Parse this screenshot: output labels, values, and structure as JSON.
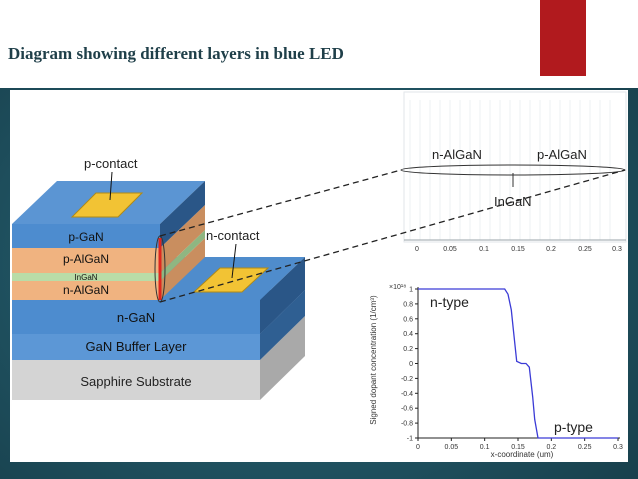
{
  "slide": {
    "title": "Diagram showing different layers in blue LED",
    "colors": {
      "accent": "#b11a1e",
      "background": "#215564"
    }
  },
  "diagram": {
    "p_contact": "p-contact",
    "n_contact": "n-contact",
    "layers": {
      "p_gan": "p-GaN",
      "p_algan": "p-AlGaN",
      "ingan": "InGaN",
      "n_algan": "n-AlGaN",
      "n_gan": "n-GaN",
      "buffer": "GaN Buffer Layer",
      "substrate": "Sapphire Substrate"
    },
    "zoom": {
      "n_algan": "n-AlGaN",
      "p_algan": "p-AlGaN",
      "ingan": "InGaN",
      "x_ticks": [
        "0",
        "0.05",
        "0.1",
        "0.15",
        "0.2",
        "0.25",
        "0.3"
      ]
    }
  },
  "chart_data": {
    "type": "line",
    "ylabel": "Signed dopant concentration (1/cm³)",
    "xlabel": "x-coordinate (um)",
    "multiplier": "×10¹⁸",
    "xlim": [
      0,
      0.3
    ],
    "ylim": [
      -1,
      1
    ],
    "x_ticks": [
      "0",
      "0.05",
      "0.1",
      "0.15",
      "0.2",
      "0.25",
      "0.3"
    ],
    "y_ticks": [
      "1",
      "0.8",
      "0.6",
      "0.4",
      "0.2",
      "0",
      "-0.2",
      "-0.4",
      "-0.6",
      "-0.8",
      "-1"
    ],
    "annotations": {
      "n_type": "n-type",
      "p_type": "p-type"
    },
    "series": [
      {
        "color": "#3b3bd6",
        "x": [
          0,
          0.13,
          0.135,
          0.14,
          0.143,
          0.148,
          0.155,
          0.162,
          0.167,
          0.172,
          0.175,
          0.18,
          0.3
        ],
        "y": [
          1,
          1,
          0.93,
          0.72,
          0.46,
          0.03,
          0,
          0,
          -0.05,
          -0.45,
          -0.75,
          -1,
          -1
        ]
      }
    ]
  }
}
